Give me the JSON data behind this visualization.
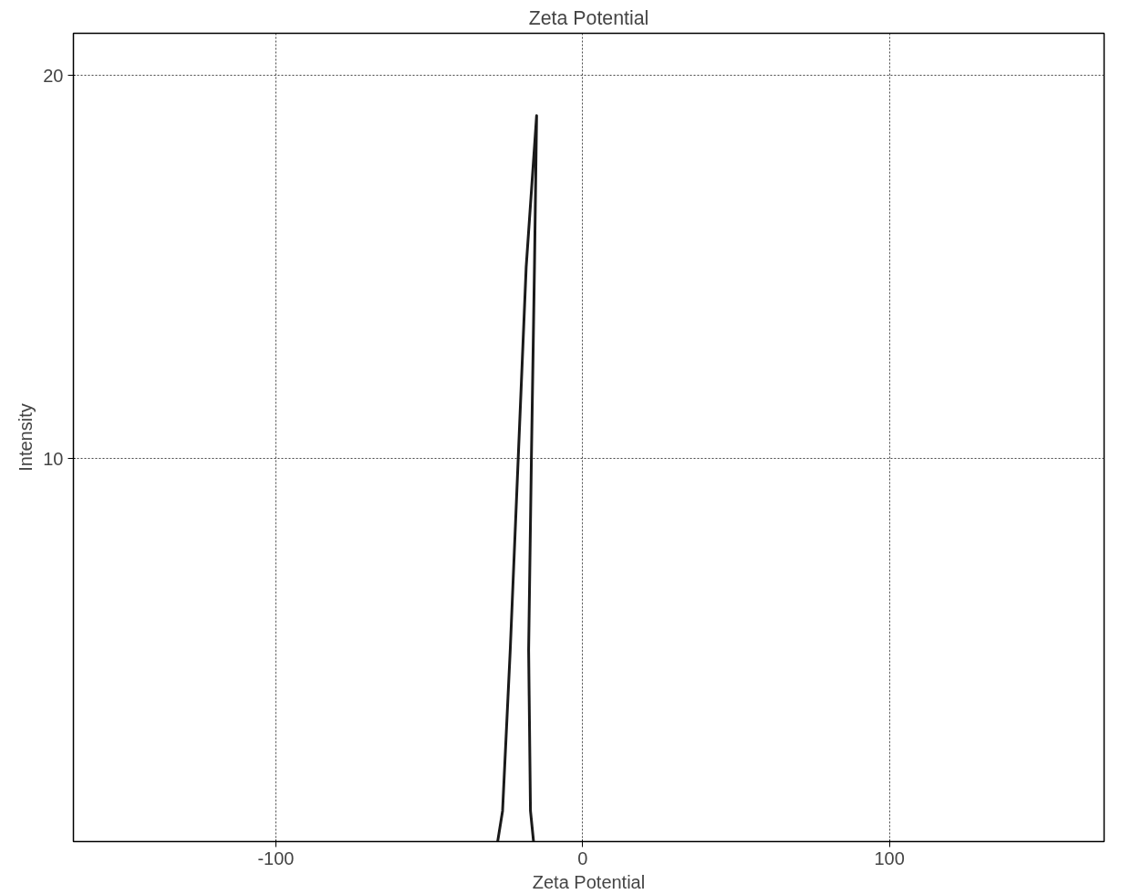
{
  "chart_data": {
    "type": "line",
    "title": "Zeta Potential",
    "xlabel": "Zeta Potential",
    "ylabel": "Intensity",
    "x": [
      -27.7,
      -26.1,
      -23.6,
      -21.0,
      -18.4,
      -15.0,
      -15.7,
      -16.7,
      -17.6,
      -17.0,
      -16.0
    ],
    "series": [
      {
        "color": "#1a1a1a",
        "values": [
          0,
          0.8,
          5,
          10,
          15,
          18.95,
          15,
          10,
          5,
          0.8,
          0
        ]
      }
    ],
    "xlim": [
      -166,
      170
    ],
    "ylim": [
      0,
      21.1
    ],
    "xticks": [
      -100,
      0,
      100
    ],
    "yticks": [
      10,
      20
    ],
    "grid": true,
    "marker": "none",
    "line_style": "solid"
  }
}
